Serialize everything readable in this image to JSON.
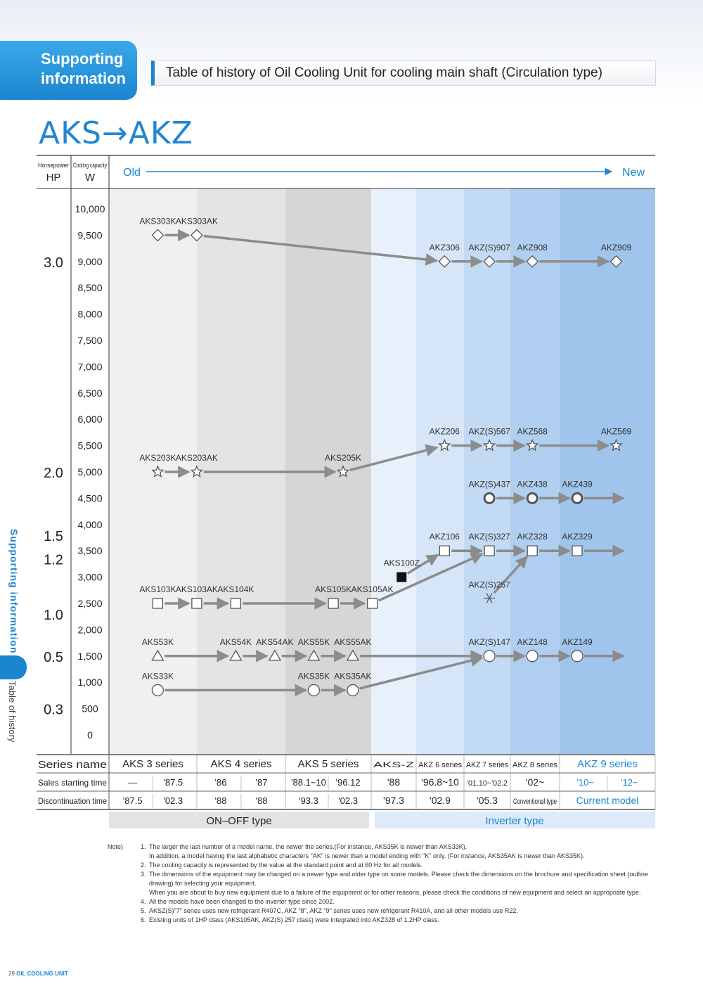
{
  "header": {
    "tab_line1": "Supporting",
    "tab_line2": "information",
    "title": "Table of history of Oil Cooling Unit for cooling main shaft (Circulation type)"
  },
  "page_title": "AKS→AKZ",
  "side_label": "Supporting information",
  "side_label2": "Table of history",
  "chart_head": {
    "hp_small": "Horsepower",
    "hp": "HP",
    "w_small": "Cooling capacity",
    "w": "W",
    "old": "Old",
    "new": "New"
  },
  "chart_data": {
    "type": "diagram",
    "y_ticks": [
      "10,000",
      "9,500",
      "9,000",
      "8,500",
      "8,000",
      "7,500",
      "7,000",
      "6,500",
      "6,000",
      "5,500",
      "5,000",
      "4,500",
      "4,000",
      "3,500",
      "3,000",
      "2,500",
      "2,000",
      "1,500",
      "1,000",
      "500",
      "0"
    ],
    "hp_labels": [
      {
        "label": "3.0",
        "w": 9000
      },
      {
        "label": "2.0",
        "w": 5000
      },
      {
        "label": "1.5",
        "w": 3800
      },
      {
        "label": "1.2",
        "w": 3350
      },
      {
        "label": "1.0",
        "w": 2300
      },
      {
        "label": "0.5",
        "w": 1500
      },
      {
        "label": "0.3",
        "w": 500
      }
    ],
    "models": [
      {
        "name": "AKS303K",
        "col": 2.5,
        "w": 9500,
        "shape": "diamond"
      },
      {
        "name": "AKS303AK",
        "col": 4.5,
        "w": 9500,
        "shape": "diamond"
      },
      {
        "name": "AKZ306",
        "col": 17.2,
        "w": 9000,
        "shape": "diamond"
      },
      {
        "name": "AKZ(S)907",
        "col": 19.5,
        "w": 9000,
        "shape": "diamond"
      },
      {
        "name": "AKZ908",
        "col": 21.7,
        "w": 9000,
        "shape": "diamond"
      },
      {
        "name": "AKZ909",
        "col": 26,
        "w": 9000,
        "shape": "diamond"
      },
      {
        "name": "AKZ206",
        "col": 17.2,
        "w": 5500,
        "shape": "star"
      },
      {
        "name": "AKZ(S)567",
        "col": 19.5,
        "w": 5500,
        "shape": "star"
      },
      {
        "name": "AKZ568",
        "col": 21.7,
        "w": 5500,
        "shape": "star"
      },
      {
        "name": "AKZ569",
        "col": 26,
        "w": 5500,
        "shape": "star"
      },
      {
        "name": "AKS203K",
        "col": 2.5,
        "w": 5000,
        "shape": "star"
      },
      {
        "name": "AKS203AK",
        "col": 4.5,
        "w": 5000,
        "shape": "star"
      },
      {
        "name": "AKS205K",
        "col": 12,
        "w": 5000,
        "shape": "star"
      },
      {
        "name": "AKZ(S)437",
        "col": 19.5,
        "w": 4500,
        "shape": "ring"
      },
      {
        "name": "AKZ438",
        "col": 21.7,
        "w": 4500,
        "shape": "ring"
      },
      {
        "name": "AKZ439",
        "col": 24,
        "w": 4500,
        "shape": "ring"
      },
      {
        "name": "AKS100Z",
        "col": 15,
        "w": 3000,
        "shape": "filled-square"
      },
      {
        "name": "AKZ106",
        "col": 17.2,
        "w": 3500,
        "shape": "square"
      },
      {
        "name": "AKZ(S)327",
        "col": 19.5,
        "w": 3500,
        "shape": "square"
      },
      {
        "name": "AKZ328",
        "col": 21.7,
        "w": 3500,
        "shape": "square"
      },
      {
        "name": "AKZ329",
        "col": 24,
        "w": 3500,
        "shape": "square"
      },
      {
        "name": "AKZ(S)257",
        "col": 19.5,
        "w": 2600,
        "shape": "snow"
      },
      {
        "name": "AKS103K",
        "col": 2.5,
        "w": 2500,
        "shape": "square"
      },
      {
        "name": "AKS103AK",
        "col": 4.5,
        "w": 2500,
        "shape": "square"
      },
      {
        "name": "AKS104K",
        "col": 6.5,
        "w": 2500,
        "shape": "square"
      },
      {
        "name": "AKS105K",
        "col": 11.5,
        "w": 2500,
        "shape": "square"
      },
      {
        "name": "AKS105AK",
        "col": 13.5,
        "w": 2500,
        "shape": "square"
      },
      {
        "name": "AKS53K",
        "col": 2.5,
        "w": 1500,
        "shape": "triangle"
      },
      {
        "name": "AKS54K",
        "col": 6.5,
        "w": 1500,
        "shape": "triangle"
      },
      {
        "name": "AKS54AK",
        "col": 8.5,
        "w": 1500,
        "shape": "triangle"
      },
      {
        "name": "AKS55K",
        "col": 10.5,
        "w": 1500,
        "shape": "triangle"
      },
      {
        "name": "AKS55AK",
        "col": 12.5,
        "w": 1500,
        "shape": "triangle"
      },
      {
        "name": "AKZ(S)147",
        "col": 19.5,
        "w": 1500,
        "shape": "circle"
      },
      {
        "name": "AKZ148",
        "col": 21.7,
        "w": 1500,
        "shape": "circle"
      },
      {
        "name": "AKZ149",
        "col": 24,
        "w": 1500,
        "shape": "circle"
      },
      {
        "name": "AKS33K",
        "col": 2.5,
        "w": 850,
        "shape": "circle"
      },
      {
        "name": "AKS35K",
        "col": 10.5,
        "w": 850,
        "shape": "circle"
      },
      {
        "name": "AKS35AK",
        "col": 12.5,
        "w": 850,
        "shape": "circle"
      }
    ]
  },
  "table": {
    "labels": {
      "series": "Series name",
      "start": "Sales starting time",
      "end": "Discontinuation time"
    },
    "series": [
      {
        "name": "AKS 3 series",
        "start": [
          "—",
          "'87.5"
        ],
        "end": [
          "'87.5",
          "'02.3"
        ]
      },
      {
        "name": "AKS 4 series",
        "start": [
          "'86",
          "'87"
        ],
        "end": [
          "'88",
          "'88"
        ]
      },
      {
        "name": "AKS 5 series",
        "start": [
          "'88.1~10",
          "'96.12"
        ],
        "end": [
          "'93.3",
          "'02.3"
        ]
      },
      {
        "name": "AKS-Z",
        "start": [
          "'88"
        ],
        "end": [
          "'97.3"
        ]
      },
      {
        "name": "AKZ 6 series",
        "start": [
          "'96.8~10"
        ],
        "end": [
          "'02.9"
        ]
      },
      {
        "name": "AKZ 7 series",
        "start": [
          "'01.10~'02.2"
        ],
        "end": [
          "'05.3"
        ]
      },
      {
        "name": "AKZ 8 series",
        "start": [
          "'02~"
        ],
        "end": [
          "Conventional type"
        ]
      },
      {
        "name": "AKZ 9 series",
        "start": [
          "'10~",
          "'12~"
        ],
        "end": [
          "Current model"
        ]
      }
    ],
    "types": {
      "onoff": "ON–OFF type",
      "inverter": "Inverter type"
    }
  },
  "notes": {
    "label": "Note)",
    "items": [
      {
        "n": "1.",
        "t": "The larger the last number of a model name, the newer the series.(For instance, AKS35K is newer than AKS33K).",
        "sub": [
          "In addition, a model having the last alphabetic characters \"AK\" is newer than a model ending with \"K\" only. (For instance, AKS35AK is newer than AKS35K)."
        ]
      },
      {
        "n": "2.",
        "t": "The cooling capacity is represented by the value at the standard point and at 60 Hz for all models.",
        "sub": []
      },
      {
        "n": "3.",
        "t": "The dimensions of the equipment may be changed on a newer type and older type on some models.  Please check the dimensions on the brochure and specification sheet (outline drawing) for selecting your equipment.",
        "sub": [
          "When you are about to buy new equipment due to a failure of the equipment or for other reasons, please check the conditions of new equipment and select an appropriate type."
        ]
      },
      {
        "n": "4.",
        "t": "All the models have been changed to the inverter type since 2002.",
        "sub": []
      },
      {
        "n": "5.",
        "t": "AKSZ(S)\"7\" series uses new refrigerant R407C, AKZ \"8\", AKZ \"9\" series uses new refrigerant R410A, and all other models use R22.",
        "sub": []
      },
      {
        "n": "6.",
        "t": "Existing units of 1HP class (AKS105AK, AKZ(S) 257 class) were integrated into AKZ328 of 1.2HP class.",
        "sub": []
      }
    ]
  },
  "footer": {
    "page": "29",
    "brand": "OIL COOLING UNIT"
  }
}
